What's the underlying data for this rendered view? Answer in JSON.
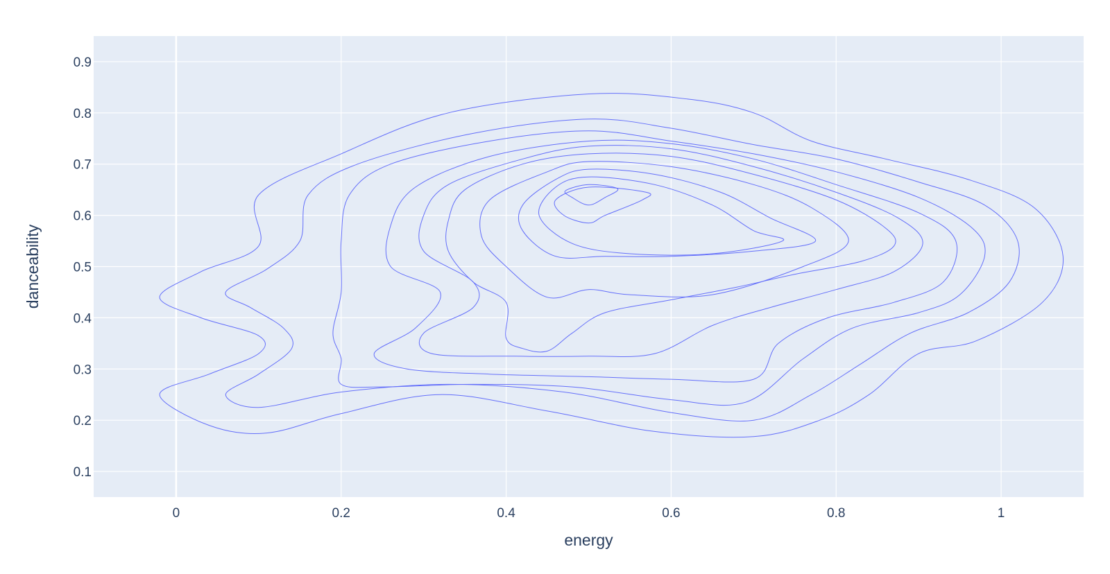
{
  "chart_data": {
    "type": "contour",
    "title": "",
    "xlabel": "energy",
    "ylabel": "danceability",
    "xlim": [
      -0.1,
      1.1
    ],
    "ylim": [
      0.05,
      0.95
    ],
    "x_ticks": [
      0,
      0.2,
      0.4,
      0.6,
      0.8,
      1
    ],
    "x_tick_labels": [
      "0",
      "0.2",
      "0.4",
      "0.6",
      "0.8",
      "1"
    ],
    "y_ticks": [
      0.1,
      0.2,
      0.3,
      0.4,
      0.5,
      0.6,
      0.7,
      0.8,
      0.9
    ],
    "y_tick_labels": [
      "0.1",
      "0.2",
      "0.3",
      "0.4",
      "0.5",
      "0.6",
      "0.7",
      "0.8",
      "0.9"
    ],
    "grid": true,
    "legend": "none",
    "colors": {
      "plot_bg": "#e5ecf6",
      "grid": "#ffffff",
      "line": "#636efa",
      "text": "#2a3f5f"
    },
    "contours": [
      {
        "level": 1,
        "points": [
          [
            0.5,
            0.837
          ],
          [
            0.62,
            0.827
          ],
          [
            0.7,
            0.8
          ],
          [
            0.77,
            0.745
          ],
          [
            0.86,
            0.71
          ],
          [
            0.96,
            0.67
          ],
          [
            1.04,
            0.615
          ],
          [
            1.075,
            0.52
          ],
          [
            1.05,
            0.43
          ],
          [
            0.97,
            0.355
          ],
          [
            0.9,
            0.33
          ],
          [
            0.84,
            0.25
          ],
          [
            0.78,
            0.2
          ],
          [
            0.7,
            0.168
          ],
          [
            0.58,
            0.178
          ],
          [
            0.45,
            0.218
          ],
          [
            0.32,
            0.25
          ],
          [
            0.2,
            0.213
          ],
          [
            0.11,
            0.175
          ],
          [
            0.04,
            0.19
          ],
          [
            -0.02,
            0.25
          ],
          [
            0.04,
            0.29
          ],
          [
            0.1,
            0.33
          ],
          [
            0.1,
            0.365
          ],
          [
            0.03,
            0.4
          ],
          [
            -0.02,
            0.44
          ],
          [
            0.03,
            0.49
          ],
          [
            0.1,
            0.54
          ],
          [
            0.1,
            0.64
          ],
          [
            0.2,
            0.72
          ],
          [
            0.33,
            0.8
          ]
        ]
      },
      {
        "level": 2,
        "points": [
          [
            0.5,
            0.788
          ],
          [
            0.6,
            0.77
          ],
          [
            0.7,
            0.738
          ],
          [
            0.8,
            0.71
          ],
          [
            0.9,
            0.665
          ],
          [
            0.98,
            0.62
          ],
          [
            1.02,
            0.55
          ],
          [
            1.01,
            0.47
          ],
          [
            0.96,
            0.41
          ],
          [
            0.89,
            0.37
          ],
          [
            0.83,
            0.31
          ],
          [
            0.77,
            0.25
          ],
          [
            0.7,
            0.2
          ],
          [
            0.6,
            0.215
          ],
          [
            0.47,
            0.255
          ],
          [
            0.33,
            0.27
          ],
          [
            0.2,
            0.255
          ],
          [
            0.1,
            0.225
          ],
          [
            0.06,
            0.25
          ],
          [
            0.1,
            0.29
          ],
          [
            0.14,
            0.34
          ],
          [
            0.13,
            0.38
          ],
          [
            0.09,
            0.42
          ],
          [
            0.06,
            0.45
          ],
          [
            0.11,
            0.495
          ],
          [
            0.15,
            0.55
          ],
          [
            0.16,
            0.64
          ],
          [
            0.22,
            0.7
          ],
          [
            0.36,
            0.76
          ]
        ]
      },
      {
        "level": 3,
        "points": [
          [
            0.5,
            0.765
          ],
          [
            0.6,
            0.745
          ],
          [
            0.7,
            0.72
          ],
          [
            0.8,
            0.685
          ],
          [
            0.9,
            0.635
          ],
          [
            0.965,
            0.575
          ],
          [
            0.98,
            0.52
          ],
          [
            0.95,
            0.445
          ],
          [
            0.9,
            0.41
          ],
          [
            0.82,
            0.38
          ],
          [
            0.76,
            0.32
          ],
          [
            0.69,
            0.235
          ],
          [
            0.6,
            0.24
          ],
          [
            0.48,
            0.265
          ],
          [
            0.36,
            0.27
          ],
          [
            0.25,
            0.265
          ],
          [
            0.2,
            0.27
          ],
          [
            0.2,
            0.32
          ],
          [
            0.19,
            0.37
          ],
          [
            0.2,
            0.45
          ],
          [
            0.2,
            0.55
          ],
          [
            0.21,
            0.64
          ],
          [
            0.26,
            0.7
          ],
          [
            0.38,
            0.745
          ]
        ]
      },
      {
        "level": 4,
        "points": [
          [
            0.5,
            0.745
          ],
          [
            0.6,
            0.74
          ],
          [
            0.7,
            0.71
          ],
          [
            0.8,
            0.66
          ],
          [
            0.9,
            0.605
          ],
          [
            0.945,
            0.55
          ],
          [
            0.93,
            0.47
          ],
          [
            0.87,
            0.43
          ],
          [
            0.79,
            0.4
          ],
          [
            0.73,
            0.35
          ],
          [
            0.7,
            0.28
          ],
          [
            0.6,
            0.28
          ],
          [
            0.5,
            0.285
          ],
          [
            0.38,
            0.29
          ],
          [
            0.28,
            0.3
          ],
          [
            0.24,
            0.33
          ],
          [
            0.29,
            0.38
          ],
          [
            0.32,
            0.45
          ],
          [
            0.26,
            0.5
          ],
          [
            0.26,
            0.58
          ],
          [
            0.29,
            0.655
          ],
          [
            0.38,
            0.715
          ]
        ]
      },
      {
        "level": 5,
        "points": [
          [
            0.5,
            0.735
          ],
          [
            0.6,
            0.73
          ],
          [
            0.7,
            0.695
          ],
          [
            0.8,
            0.645
          ],
          [
            0.875,
            0.595
          ],
          [
            0.905,
            0.545
          ],
          [
            0.87,
            0.49
          ],
          [
            0.8,
            0.455
          ],
          [
            0.72,
            0.42
          ],
          [
            0.65,
            0.385
          ],
          [
            0.58,
            0.33
          ],
          [
            0.5,
            0.325
          ],
          [
            0.41,
            0.325
          ],
          [
            0.31,
            0.33
          ],
          [
            0.3,
            0.37
          ],
          [
            0.36,
            0.42
          ],
          [
            0.36,
            0.47
          ],
          [
            0.3,
            0.53
          ],
          [
            0.3,
            0.6
          ],
          [
            0.33,
            0.66
          ],
          [
            0.42,
            0.71
          ]
        ]
      },
      {
        "level": 6,
        "points": [
          [
            0.5,
            0.72
          ],
          [
            0.6,
            0.715
          ],
          [
            0.7,
            0.68
          ],
          [
            0.8,
            0.63
          ],
          [
            0.86,
            0.575
          ],
          [
            0.87,
            0.54
          ],
          [
            0.83,
            0.51
          ],
          [
            0.75,
            0.485
          ],
          [
            0.68,
            0.46
          ],
          [
            0.6,
            0.435
          ],
          [
            0.52,
            0.41
          ],
          [
            0.48,
            0.37
          ],
          [
            0.45,
            0.335
          ],
          [
            0.42,
            0.34
          ],
          [
            0.4,
            0.36
          ],
          [
            0.4,
            0.43
          ],
          [
            0.36,
            0.47
          ],
          [
            0.33,
            0.53
          ],
          [
            0.33,
            0.59
          ],
          [
            0.35,
            0.65
          ],
          [
            0.42,
            0.7
          ]
        ]
      },
      {
        "level": 7,
        "points": [
          [
            0.5,
            0.705
          ],
          [
            0.6,
            0.695
          ],
          [
            0.7,
            0.66
          ],
          [
            0.77,
            0.615
          ],
          [
            0.815,
            0.55
          ],
          [
            0.76,
            0.5
          ],
          [
            0.65,
            0.445
          ],
          [
            0.55,
            0.445
          ],
          [
            0.5,
            0.455
          ],
          [
            0.45,
            0.44
          ],
          [
            0.4,
            0.5
          ],
          [
            0.37,
            0.56
          ],
          [
            0.38,
            0.63
          ],
          [
            0.45,
            0.685
          ]
        ]
      },
      {
        "level": 8,
        "points": [
          [
            0.5,
            0.69
          ],
          [
            0.58,
            0.68
          ],
          [
            0.66,
            0.645
          ],
          [
            0.72,
            0.595
          ],
          [
            0.775,
            0.55
          ],
          [
            0.7,
            0.53
          ],
          [
            0.6,
            0.52
          ],
          [
            0.52,
            0.52
          ],
          [
            0.46,
            0.52
          ],
          [
            0.42,
            0.57
          ],
          [
            0.42,
            0.62
          ],
          [
            0.46,
            0.67
          ]
        ]
      },
      {
        "level": 9,
        "points": [
          [
            0.5,
            0.675
          ],
          [
            0.58,
            0.66
          ],
          [
            0.65,
            0.62
          ],
          [
            0.7,
            0.57
          ],
          [
            0.735,
            0.55
          ],
          [
            0.65,
            0.525
          ],
          [
            0.55,
            0.525
          ],
          [
            0.48,
            0.545
          ],
          [
            0.44,
            0.6
          ],
          [
            0.46,
            0.655
          ]
        ]
      },
      {
        "level": 10,
        "points": [
          [
            0.5,
            0.655
          ],
          [
            0.57,
            0.645
          ],
          [
            0.565,
            0.63
          ],
          [
            0.52,
            0.6
          ],
          [
            0.5,
            0.585
          ],
          [
            0.47,
            0.6
          ],
          [
            0.46,
            0.63
          ]
        ]
      },
      {
        "level": 11,
        "points": [
          [
            0.5,
            0.66
          ],
          [
            0.535,
            0.652
          ],
          [
            0.52,
            0.635
          ],
          [
            0.5,
            0.62
          ],
          [
            0.48,
            0.635
          ],
          [
            0.472,
            0.648
          ]
        ]
      }
    ]
  }
}
